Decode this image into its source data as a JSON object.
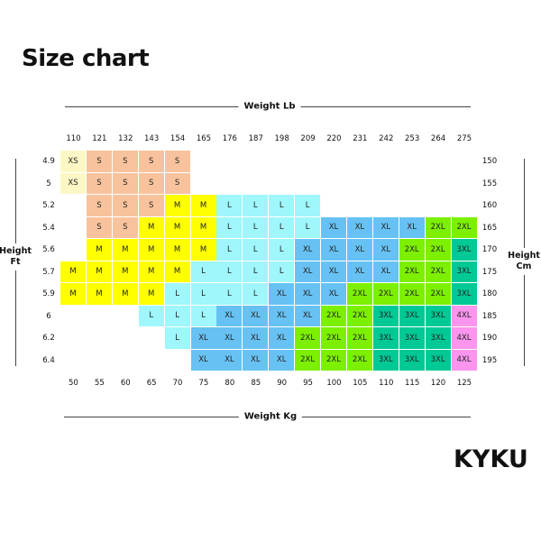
{
  "title": "Size chart",
  "brand": "KYKU",
  "top_axis": {
    "title": "Weight Lb",
    "ticks": [
      "110",
      "121",
      "132",
      "143",
      "154",
      "165",
      "176",
      "187",
      "198",
      "209",
      "220",
      "231",
      "242",
      "253",
      "264",
      "275"
    ]
  },
  "bottom_axis": {
    "title": "Weight Kg",
    "ticks": [
      "50",
      "55",
      "60",
      "65",
      "70",
      "75",
      "80",
      "85",
      "90",
      "95",
      "100",
      "105",
      "110",
      "115",
      "120",
      "125"
    ]
  },
  "left_axis": {
    "title_line1": "Height",
    "title_line2": "Ft",
    "ticks": [
      "4.9",
      "5",
      "5.2",
      "5.4",
      "5.6",
      "5.7",
      "5.9",
      "6",
      "6.2",
      "6.4"
    ]
  },
  "right_axis": {
    "title_line1": "Height",
    "title_line2": "Cm",
    "ticks": [
      "150",
      "155",
      "160",
      "165",
      "170",
      "175",
      "180",
      "185",
      "190",
      "195"
    ]
  },
  "size_colors": {
    "XS": "#fdf7c6",
    "S": "#f8c39c",
    "M": "#ffff00",
    "L": "#9ff6fb",
    "XL": "#67c2f3",
    "2XL": "#7cf000",
    "3XL": "#00c995",
    "4XL": "#fb95ee"
  },
  "chart_data": {
    "type": "table",
    "columns_lb": [
      "110",
      "121",
      "132",
      "143",
      "154",
      "165",
      "176",
      "187",
      "198",
      "209",
      "220",
      "231",
      "242",
      "253",
      "264",
      "275"
    ],
    "columns_kg": [
      "50",
      "55",
      "60",
      "65",
      "70",
      "75",
      "80",
      "85",
      "90",
      "95",
      "100",
      "105",
      "110",
      "115",
      "120",
      "125"
    ],
    "rows_ft": [
      "4.9",
      "5",
      "5.2",
      "5.4",
      "5.6",
      "5.7",
      "5.9",
      "6",
      "6.2",
      "6.4"
    ],
    "rows_cm": [
      "150",
      "155",
      "160",
      "165",
      "170",
      "175",
      "180",
      "185",
      "190",
      "195"
    ],
    "sizes": [
      [
        "XS",
        "S",
        "S",
        "S",
        "S",
        "",
        "",
        "",
        "",
        "",
        "",
        "",
        "",
        "",
        "",
        ""
      ],
      [
        "XS",
        "S",
        "S",
        "S",
        "S",
        "",
        "",
        "",
        "",
        "",
        "",
        "",
        "",
        "",
        "",
        ""
      ],
      [
        "",
        "S",
        "S",
        "S",
        "M",
        "M",
        "L",
        "L",
        "L",
        "L",
        "",
        "",
        "",
        "",
        "",
        ""
      ],
      [
        "",
        "S",
        "S",
        "M",
        "M",
        "M",
        "L",
        "L",
        "L",
        "L",
        "XL",
        "XL",
        "XL",
        "XL",
        "2XL",
        "2XL"
      ],
      [
        "",
        "M",
        "M",
        "M",
        "M",
        "M",
        "L",
        "L",
        "L",
        "XL",
        "XL",
        "XL",
        "XL",
        "2XL",
        "2XL",
        "3XL"
      ],
      [
        "M",
        "M",
        "M",
        "M",
        "M",
        "L",
        "L",
        "L",
        "L",
        "XL",
        "XL",
        "XL",
        "XL",
        "2XL",
        "2XL",
        "3XL"
      ],
      [
        "M",
        "M",
        "M",
        "M",
        "L",
        "L",
        "L",
        "L",
        "XL",
        "XL",
        "XL",
        "2XL",
        "2XL",
        "2XL",
        "2XL",
        "3XL"
      ],
      [
        "",
        "",
        "",
        "L",
        "L",
        "L",
        "XL",
        "XL",
        "XL",
        "XL",
        "2XL",
        "2XL",
        "3XL",
        "3XL",
        "3XL",
        "4XL"
      ],
      [
        "",
        "",
        "",
        "",
        "L",
        "XL",
        "XL",
        "XL",
        "XL",
        "2XL",
        "2XL",
        "2XL",
        "3XL",
        "3XL",
        "3XL",
        "4XL"
      ],
      [
        "",
        "",
        "",
        "",
        "",
        "XL",
        "XL",
        "XL",
        "XL",
        "2XL",
        "2XL",
        "2XL",
        "3XL",
        "3XL",
        "3XL",
        "4XL"
      ]
    ]
  }
}
